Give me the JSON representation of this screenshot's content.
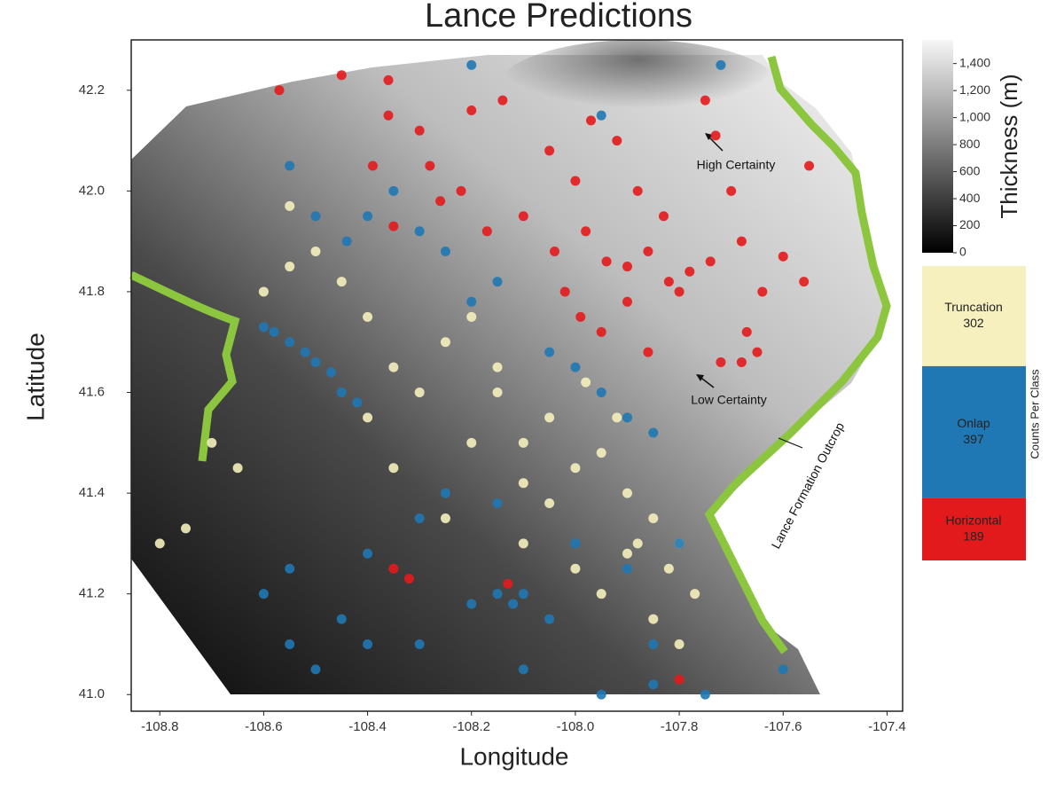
{
  "chart_data": {
    "type": "scatter",
    "title": "Lance Predictions",
    "xlabel": "Longitude",
    "ylabel": "Latitude",
    "xlim": [
      -108.855,
      -107.37
    ],
    "ylim": [
      40.967,
      42.3
    ],
    "xticks": [
      -108.8,
      -108.6,
      -108.4,
      -108.2,
      {
        "value": -108.0,
        "label": "-108.0"
      },
      -107.8,
      -107.6,
      -107.4
    ],
    "yticks": [
      {
        "value": 41.0,
        "label": "41.0"
      },
      41.2,
      41.4,
      41.6,
      41.8,
      {
        "value": 42.0,
        "label": "42.0"
      },
      42.2
    ],
    "colorbar": {
      "label": "Thickness (m)",
      "lim": [
        0,
        1575
      ],
      "ticks": [
        0,
        200,
        400,
        600,
        800,
        {
          "value": 1000,
          "label": "1,000"
        },
        {
          "value": 1200,
          "label": "1,200"
        },
        {
          "value": 1400,
          "label": "1,400"
        }
      ]
    },
    "legend_title": "Counts Per Class",
    "series": [
      {
        "name": "Truncation",
        "count": 302,
        "color": "#f5f0bd",
        "x": [
          -108.8,
          -108.75,
          -108.65,
          -108.55,
          -108.5,
          -108.45,
          -108.4,
          -108.35,
          -108.3,
          -108.25,
          -108.2,
          -108.15,
          -108.1,
          -108.05,
          -108.0,
          -107.95,
          -107.9,
          -107.85,
          -107.8,
          -107.77,
          -108.4,
          -108.35,
          -108.25,
          -108.2,
          -108.1,
          -108.05,
          -107.98,
          -107.92,
          -107.88,
          -107.82,
          -108.15,
          -108.1,
          -108.0,
          -107.95,
          -107.9,
          -107.85,
          -107.8,
          -108.55,
          -108.6,
          -108.7
        ],
        "y": [
          41.3,
          41.33,
          41.45,
          41.97,
          41.88,
          41.82,
          41.75,
          41.65,
          41.6,
          41.7,
          41.75,
          41.65,
          41.5,
          41.55,
          41.45,
          41.48,
          41.4,
          41.35,
          41.3,
          41.2,
          41.55,
          41.45,
          41.35,
          41.5,
          41.42,
          41.38,
          41.62,
          41.55,
          41.3,
          41.25,
          41.6,
          41.3,
          41.25,
          41.2,
          41.28,
          41.15,
          41.1,
          41.85,
          41.8,
          41.5
        ]
      },
      {
        "name": "Onlap",
        "count": 397,
        "color": "#1f78b4",
        "x": [
          -108.6,
          -108.58,
          -108.55,
          -108.52,
          -108.5,
          -108.47,
          -108.45,
          -108.42,
          -108.55,
          -108.5,
          -108.44,
          -108.4,
          -108.35,
          -108.3,
          -108.25,
          -108.2,
          -108.15,
          -108.05,
          -108.0,
          -107.95,
          -107.9,
          -107.85,
          -107.8,
          -108.6,
          -108.55,
          -108.45,
          -108.4,
          -108.3,
          -108.25,
          -108.15,
          -108.1,
          -108.05,
          -108.0,
          -107.9,
          -107.85,
          -108.55,
          -108.5,
          -108.4,
          -108.3,
          -108.2,
          -108.1,
          -107.95,
          -107.85,
          -107.75,
          -107.6,
          -108.15,
          -108.12,
          -108.2,
          -107.95,
          -107.72
        ],
        "y": [
          41.73,
          41.72,
          41.7,
          41.68,
          41.66,
          41.64,
          41.6,
          41.58,
          42.05,
          41.95,
          41.9,
          41.95,
          42.0,
          41.92,
          41.88,
          41.78,
          41.82,
          41.68,
          41.65,
          41.6,
          41.55,
          41.52,
          41.3,
          41.2,
          41.1,
          41.15,
          41.28,
          41.35,
          41.4,
          41.38,
          41.2,
          41.15,
          41.3,
          41.25,
          41.1,
          41.25,
          41.05,
          41.1,
          41.1,
          41.18,
          41.05,
          41.0,
          41.02,
          41.0,
          41.05,
          41.2,
          41.18,
          42.25,
          42.15,
          42.25
        ]
      },
      {
        "name": "Horizontal",
        "count": 189,
        "color": "#e31a1c",
        "x": [
          -108.57,
          -108.45,
          -108.36,
          -108.36,
          -108.3,
          -108.28,
          -108.22,
          -108.2,
          -108.14,
          -108.05,
          -108.0,
          -107.97,
          -107.92,
          -107.88,
          -107.83,
          -107.75,
          -107.73,
          -107.7,
          -107.55,
          -108.39,
          -108.35,
          -108.26,
          -108.17,
          -108.1,
          -108.04,
          -107.98,
          -107.94,
          -107.9,
          -107.86,
          -107.82,
          -107.78,
          -107.74,
          -107.68,
          -107.64,
          -107.6,
          -107.56,
          -108.02,
          -107.99,
          -107.95,
          -107.9,
          -107.86,
          -107.8,
          -107.67,
          -107.68,
          -107.72,
          -107.65,
          -108.35,
          -108.32,
          -108.13,
          -107.8
        ],
        "y": [
          42.2,
          42.23,
          42.22,
          42.15,
          42.12,
          42.05,
          42.0,
          42.16,
          42.18,
          42.08,
          42.02,
          42.14,
          42.1,
          42.0,
          41.95,
          42.18,
          42.11,
          42.0,
          42.05,
          42.05,
          41.93,
          41.98,
          41.92,
          41.95,
          41.88,
          41.92,
          41.86,
          41.85,
          41.88,
          41.82,
          41.84,
          41.86,
          41.9,
          41.8,
          41.87,
          41.82,
          41.8,
          41.75,
          41.72,
          41.78,
          41.68,
          41.8,
          41.72,
          41.66,
          41.66,
          41.68,
          41.25,
          41.23,
          41.22,
          41.03
        ]
      }
    ],
    "annotations": [
      "High Certainty",
      "Low Certainty",
      "Lance Formation Outcrop"
    ]
  }
}
